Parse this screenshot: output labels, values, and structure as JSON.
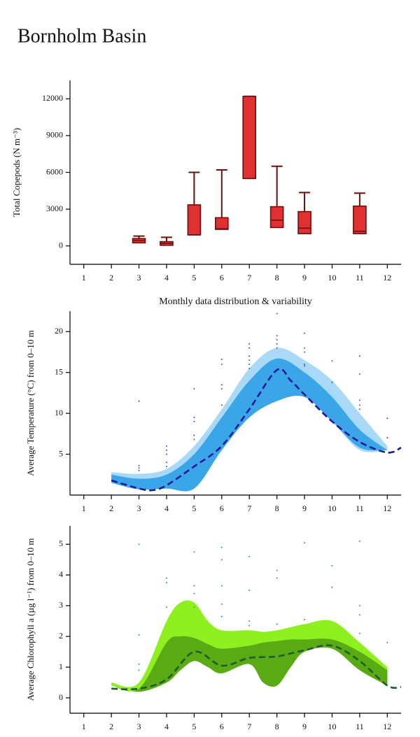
{
  "title": "Bornholm Basin",
  "chart_data": [
    {
      "type": "box",
      "y_label": "Total Copepods (N m⁻³)",
      "x_label": "Monthly data distribution & variability",
      "xlim": [
        0.5,
        12.5
      ],
      "xticks": [
        1,
        2,
        3,
        4,
        5,
        6,
        7,
        8,
        9,
        10,
        11,
        12
      ],
      "ylim": [
        -1500,
        13500
      ],
      "yticks": [
        0,
        3000,
        6000,
        9000,
        12000
      ],
      "fill": "#e03030",
      "edge": "#6b0f0f",
      "x": [
        3,
        4,
        5,
        6,
        7,
        8,
        9,
        11
      ],
      "min": [
        250,
        50,
        900,
        1350,
        5500,
        1500,
        1000,
        1000
      ],
      "q1": [
        250,
        50,
        900,
        1350,
        5500,
        1500,
        1000,
        1000
      ],
      "median": [
        450,
        200,
        900,
        1400,
        5500,
        2100,
        1450,
        1200
      ],
      "q3": [
        600,
        350,
        3350,
        2300,
        12200,
        3200,
        2800,
        3250
      ],
      "max": [
        800,
        700,
        6000,
        6200,
        12200,
        6500,
        4350,
        4300
      ]
    },
    {
      "type": "band",
      "y_label": "Average Temperature (°C) from 0–10 m",
      "xlim": [
        0.5,
        12.5
      ],
      "xticks": [
        1,
        2,
        3,
        4,
        5,
        6,
        7,
        8,
        9,
        10,
        11,
        12
      ],
      "ylim": [
        0,
        22.5
      ],
      "yticks": [
        5,
        10,
        15,
        20
      ],
      "bands": [
        {
          "color": "#a9d9f6",
          "x": [
            2,
            3,
            4,
            5,
            6,
            7,
            8,
            9,
            10,
            11,
            12
          ],
          "upper": [
            2.8,
            2.6,
            3.2,
            6,
            10.5,
            15.5,
            18,
            16.5,
            14,
            10,
            6
          ],
          "lower": [
            1.5,
            0.7,
            0.8,
            0.8,
            5.5,
            9.5,
            11.5,
            12,
            9,
            5.5,
            5.5
          ]
        },
        {
          "color": "#3aa6e8",
          "x": [
            2,
            3,
            4,
            5,
            6,
            7,
            8,
            9,
            10,
            11,
            12
          ],
          "upper": [
            2.5,
            2,
            2.5,
            5,
            9.5,
            14,
            16.7,
            15,
            12,
            8,
            5.5
          ],
          "lower": [
            1.5,
            0.7,
            0.8,
            0.8,
            5.5,
            9.5,
            11.5,
            12,
            9,
            5.8,
            5.5
          ]
        }
      ],
      "mean": {
        "color": "#1a1a9a",
        "x": [
          2,
          3,
          3.5,
          4,
          5,
          6,
          7,
          8,
          8.5,
          9,
          10,
          11,
          12,
          12.5
        ],
        "values": [
          1.8,
          0.8,
          0.6,
          1.2,
          3.5,
          6,
          10.5,
          15.3,
          14,
          12.3,
          9,
          6.5,
          5.2,
          5.8
        ]
      },
      "points": {
        "color": "#3355cc",
        "x": [
          3,
          3,
          3,
          3,
          4,
          4,
          4,
          4,
          4,
          5,
          5,
          5,
          5,
          5,
          6,
          6,
          6,
          6,
          6,
          7,
          7,
          7,
          7,
          7,
          7,
          8,
          8,
          8,
          8,
          8,
          9,
          9,
          9,
          9,
          9,
          10,
          10,
          11,
          11,
          11,
          11,
          11,
          12,
          12
        ],
        "y": [
          11.5,
          3.6,
          3.3,
          3,
          6,
          5.5,
          5,
          4,
          3.5,
          13,
          9.5,
          9,
          7.3,
          6.8,
          16.6,
          16,
          13.5,
          13,
          11,
          18.5,
          18,
          17,
          16.5,
          16,
          15.5,
          22.2,
          19.5,
          19,
          18.5,
          18,
          19.8,
          18,
          17.5,
          16,
          15.8,
          16.4,
          13.8,
          17,
          14.8,
          11.6,
          11,
          10.5,
          9.4,
          7
        ]
      }
    },
    {
      "type": "band",
      "y_label": "Average Chlorophyll a (µg l⁻¹) from 0–10 m",
      "xlim": [
        0.5,
        12.5
      ],
      "xticks": [
        1,
        2,
        3,
        4,
        5,
        6,
        7,
        8,
        9,
        10,
        11,
        12
      ],
      "ylim": [
        -0.5,
        5.6
      ],
      "yticks": [
        0,
        1,
        2,
        3,
        4,
        5
      ],
      "bands": [
        {
          "color": "#8ef01e",
          "x": [
            2,
            3,
            4,
            4.5,
            5,
            5.5,
            6,
            7,
            7.5,
            8,
            8.5,
            9,
            10,
            11,
            12
          ],
          "upper": [
            0.5,
            0.5,
            2.5,
            3.1,
            3.1,
            2.5,
            2.2,
            2.2,
            2.15,
            2.2,
            2.3,
            2.4,
            2.5,
            1.8,
            1.0
          ],
          "lower": [
            0.4,
            0.2,
            0.5,
            0.9,
            1.2,
            1.0,
            0.8,
            1.1,
            0.5,
            0.4,
            1.0,
            1.5,
            1.6,
            0.9,
            0.4
          ]
        },
        {
          "color": "#5aaa14",
          "x": [
            2,
            3,
            4,
            4.5,
            5,
            5.5,
            6,
            7,
            7.5,
            8,
            8.5,
            9,
            10,
            11,
            12
          ],
          "upper": [
            0.4,
            0.3,
            1.8,
            2,
            1.95,
            1.75,
            1.6,
            1.7,
            1.8,
            1.85,
            1.9,
            1.9,
            1.9,
            1.5,
            0.9
          ],
          "lower": [
            0.4,
            0.2,
            0.5,
            0.9,
            1.2,
            1.0,
            0.8,
            1.1,
            0.5,
            0.4,
            1.0,
            1.5,
            1.6,
            0.9,
            0.4
          ]
        }
      ],
      "mean": {
        "color": "#1f5c2e",
        "x": [
          2,
          3,
          4,
          5,
          6,
          7,
          8,
          9,
          10,
          11,
          12,
          12.5
        ],
        "values": [
          0.3,
          0.3,
          0.6,
          1.5,
          1.05,
          1.3,
          1.35,
          1.55,
          1.7,
          1.2,
          0.4,
          0.35
        ]
      },
      "points": {
        "color": "#3b8f8f",
        "x": [
          3,
          3,
          3,
          3,
          4,
          4,
          4,
          5,
          5,
          5,
          5,
          6,
          6,
          6,
          6,
          6,
          7,
          7,
          7,
          7,
          8,
          8,
          8,
          9,
          9,
          10,
          10,
          11,
          11,
          11,
          11,
          12
        ],
        "y": [
          5,
          2.05,
          1.1,
          0.9,
          3.9,
          3.75,
          2.95,
          4.75,
          3.65,
          3.4,
          2.95,
          4.9,
          4.5,
          3.65,
          3.05,
          2.65,
          4.6,
          3.5,
          2.5,
          2.35,
          4.15,
          3.9,
          2.4,
          5.05,
          2.55,
          4.3,
          3.6,
          5.1,
          3,
          2.7,
          2.1,
          1.8
        ]
      }
    }
  ]
}
